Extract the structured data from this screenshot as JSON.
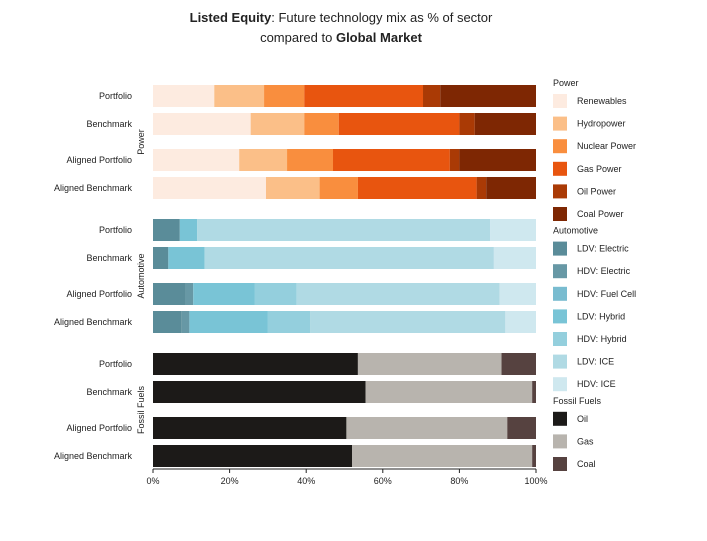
{
  "title": {
    "bold1": "Listed Equity",
    "part1": ": Future technology mix as % of sector",
    "part2": "compared to ",
    "bold2": "Global Market"
  },
  "chart_data": {
    "type": "bar",
    "orientation": "horizontal-stacked",
    "xlim": [
      0,
      100
    ],
    "x_ticks": [
      "0%",
      "20%",
      "40%",
      "60%",
      "80%",
      "100%"
    ],
    "groups": [
      {
        "name": "Power",
        "bars": [
          {
            "label": "Portfolio",
            "values": [
              16,
              13,
              10.5,
              31,
              4.5,
              25
            ]
          },
          {
            "label": "Benchmark",
            "values": [
              25.5,
              14,
              9,
              31.5,
              4,
              16
            ]
          },
          {
            "label": "Aligned Portfolio",
            "values": [
              22.5,
              12.5,
              12,
              30.5,
              2.5,
              20
            ]
          },
          {
            "label": "Aligned Benchmark",
            "values": [
              29.5,
              14,
              10,
              31,
              2.5,
              13
            ]
          }
        ]
      },
      {
        "name": "Automotive",
        "bars": [
          {
            "label": "Portfolio",
            "values": [
              7,
              0,
              0,
              4.5,
              0,
              76.5,
              12
            ]
          },
          {
            "label": "Benchmark",
            "values": [
              4,
              0,
              0,
              9.5,
              0,
              75.5,
              11
            ]
          },
          {
            "label": "Aligned Portfolio",
            "values": [
              8.5,
              2,
              0,
              16,
              11,
              53,
              9.5
            ]
          },
          {
            "label": "Aligned Benchmark",
            "values": [
              7.5,
              2,
              0,
              20.5,
              11,
              51,
              8
            ]
          }
        ]
      },
      {
        "name": "Fossil Fuels",
        "bars": [
          {
            "label": "Portfolio",
            "values": [
              53.5,
              37.5,
              9
            ]
          },
          {
            "label": "Benchmark",
            "values": [
              55.5,
              43.5,
              1
            ]
          },
          {
            "label": "Aligned Portfolio",
            "values": [
              50.5,
              42,
              7.5
            ]
          },
          {
            "label": "Aligned Benchmark",
            "values": [
              52,
              47,
              1
            ]
          }
        ]
      }
    ],
    "legend": [
      {
        "title": "Power",
        "items": [
          {
            "name": "Renewables",
            "color": "#fdebe0"
          },
          {
            "name": "Hydropower",
            "color": "#fbbf88"
          },
          {
            "name": "Nuclear Power",
            "color": "#f98e3e"
          },
          {
            "name": "Gas Power",
            "color": "#e8550f"
          },
          {
            "name": "Oil Power",
            "color": "#aa3a05"
          },
          {
            "name": "Coal Power",
            "color": "#7e2703"
          }
        ]
      },
      {
        "title": "Automotive",
        "items": [
          {
            "name": "LDV: Electric",
            "color": "#5a8c99"
          },
          {
            "name": "HDV: Electric",
            "color": "#6798a5"
          },
          {
            "name": "HDV: Fuel Cell",
            "color": "#79bcd0"
          },
          {
            "name": "LDV: Hybrid",
            "color": "#79c4d6"
          },
          {
            "name": "HDV: Hybrid",
            "color": "#94cfdd"
          },
          {
            "name": "LDV: ICE",
            "color": "#b0dae4"
          },
          {
            "name": "HDV: ICE",
            "color": "#cfe8ef"
          }
        ]
      },
      {
        "title": "Fossil Fuels",
        "items": [
          {
            "name": "Oil",
            "color": "#1c1a18"
          },
          {
            "name": "Gas",
            "color": "#b8b4ae"
          },
          {
            "name": "Coal",
            "color": "#564240"
          }
        ]
      }
    ],
    "legend_placement": "right",
    "grid": false
  }
}
